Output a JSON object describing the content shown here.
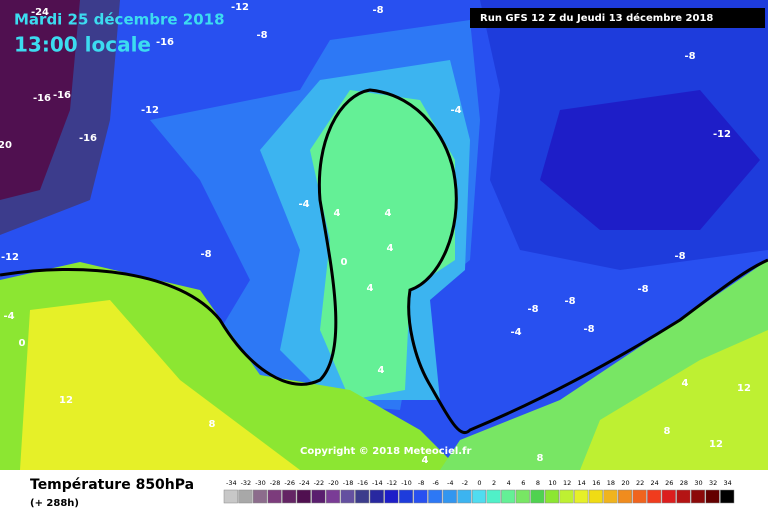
{
  "header": {
    "date": "Mardi 25 décembre 2018",
    "time": "13:00 locale",
    "run": "Run GFS 12 Z du Jeudi 13 décembre 2018"
  },
  "copyright": "Copyright © 2018 Meteociel.fr",
  "footer": {
    "title": "Température 850hPa",
    "lead": "(+ 288h)"
  },
  "legend": {
    "values": [
      -34,
      -32,
      -30,
      -28,
      -26,
      -24,
      -22,
      -20,
      -18,
      -16,
      -14,
      -12,
      -10,
      -8,
      -6,
      -4,
      -2,
      0,
      2,
      4,
      6,
      8,
      10,
      12,
      14,
      16,
      18,
      20,
      22,
      24,
      26,
      28,
      30,
      32,
      34
    ],
    "colors": [
      "#c8c8c8",
      "#a8a8a8",
      "#8c6c8c",
      "#7c3c7c",
      "#642464",
      "#501050",
      "#5a1e6e",
      "#7a3c96",
      "#6450a0",
      "#3c3c8c",
      "#2828a0",
      "#1e1ec8",
      "#1e3cdc",
      "#2850f0",
      "#2d78f5",
      "#3296f0",
      "#3cb4f0",
      "#50dcf0",
      "#50f0c8",
      "#64f096",
      "#78e664",
      "#50d250",
      "#8ce632",
      "#bef032",
      "#e6f028",
      "#f0dc14",
      "#f0b41e",
      "#f08c1e",
      "#f0641e",
      "#f03c1e",
      "#dc1e1e",
      "#b41414",
      "#8c0a0a",
      "#640000",
      "#000000"
    ]
  },
  "map": {
    "labels": [
      -24,
      -8,
      -12,
      -16,
      -8,
      -8,
      -16,
      -16,
      -12,
      -16,
      -4,
      -12,
      20,
      -4,
      4,
      4,
      4,
      0,
      -12,
      -8,
      -8,
      4,
      -8,
      -8,
      -8,
      -4,
      0,
      -4,
      -8,
      4,
      12,
      4,
      12,
      8,
      8,
      12,
      8,
      4
    ]
  }
}
